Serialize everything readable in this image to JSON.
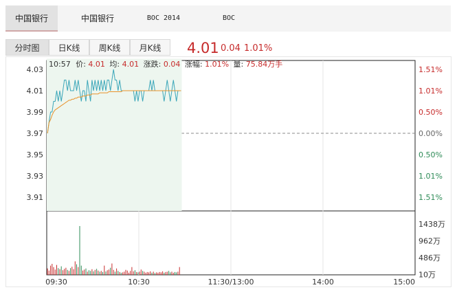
{
  "top_tabs": [
    {
      "label": "中国银行",
      "active": true
    },
    {
      "label": "中国银行",
      "active": false
    },
    {
      "label": "BOC 2014",
      "active": false
    },
    {
      "label": "BOC",
      "active": false
    }
  ],
  "kline_tabs": [
    {
      "label": "分时图",
      "active": true
    },
    {
      "label": "日K线",
      "active": false
    },
    {
      "label": "周K线",
      "active": false
    },
    {
      "label": "月K线",
      "active": false
    }
  ],
  "quote": {
    "price": "4.01",
    "change": "0.04",
    "change_pct": "1.01%"
  },
  "info": {
    "time": "10:57",
    "price_label": "价:",
    "price": "4.01",
    "avg_label": "均:",
    "avg": "4.01",
    "chg_label": "涨跌:",
    "chg": "0.04",
    "pct_label": "涨幅:",
    "pct": "1.01%",
    "vol_label": "量:",
    "vol": "75.84万手"
  },
  "colors": {
    "up": "#c62a2a",
    "down": "#2e8b57",
    "price_line": "#3aa6b9",
    "avg_line": "#e8922a",
    "fill": "#edf6ef",
    "volume": "#2e8b57"
  },
  "chart_data": {
    "type": "line",
    "ylim": [
      3.9,
      4.04
    ],
    "base_price": 3.97,
    "left_ticks": [
      "4.03",
      "4.01",
      "3.99",
      "3.97",
      "3.95",
      "3.93",
      "3.91"
    ],
    "right_ticks": [
      "1.51%",
      "1.01%",
      "0.50%",
      "0.00%",
      "0.50%",
      "1.01%",
      "1.51%"
    ],
    "x_ticks": [
      "09:30",
      "10:30",
      "11:30/13:00",
      "14:00",
      "15:00"
    ],
    "volume_ticks": [
      "1438万",
      "962万",
      "486万",
      "10万"
    ],
    "volume_max": 1438,
    "minutes_elapsed": 87,
    "price": [
      3.97,
      3.98,
      3.99,
      3.99,
      4.0,
      4.0,
      4.01,
      4.0,
      4.01,
      4.0,
      4.01,
      4.02,
      4.02,
      4.01,
      4.02,
      4.01,
      4.01,
      4.01,
      4.02,
      4.01,
      4.02,
      4.01,
      4.0,
      4.01,
      4.01,
      4.0,
      4.02,
      4.01,
      4.0,
      4.02,
      4.01,
      4.02,
      4.01,
      4.02,
      4.01,
      4.02,
      4.01,
      4.02,
      4.01,
      4.02,
      4.02,
      4.01,
      4.02,
      4.03,
      4.02,
      4.02,
      4.01,
      4.02,
      4.01,
      4.01,
      4.01,
      4.01,
      4.01,
      4.01,
      4.01,
      4.01,
      4.01,
      4.0,
      4.01,
      4.0,
      4.01,
      4.01,
      4.0,
      4.01,
      4.01,
      4.01,
      4.01,
      4.02,
      4.01,
      4.02,
      4.01,
      4.01,
      4.01,
      4.01,
      4.01,
      4.01,
      4.0,
      4.01,
      4.02,
      4.01,
      4.0,
      4.01,
      4.02,
      4.01,
      4.0,
      4.01,
      4.01,
      4.01
    ],
    "avg": [
      3.97,
      3.98,
      3.983,
      3.987,
      3.99,
      3.992,
      3.993,
      3.994,
      3.995,
      3.996,
      3.997,
      3.998,
      3.999,
      4.0,
      4.001,
      4.001,
      4.002,
      4.002,
      4.003,
      4.003,
      4.004,
      4.004,
      4.004,
      4.005,
      4.005,
      4.005,
      4.006,
      4.006,
      4.006,
      4.007,
      4.007,
      4.007,
      4.007,
      4.007,
      4.008,
      4.008,
      4.008,
      4.008,
      4.008,
      4.008,
      4.009,
      4.009,
      4.009,
      4.009,
      4.009,
      4.009,
      4.009,
      4.009,
      4.009,
      4.01,
      4.01,
      4.01,
      4.01,
      4.01,
      4.01,
      4.01,
      4.01,
      4.01,
      4.01,
      4.01,
      4.01,
      4.01,
      4.01,
      4.01,
      4.01,
      4.01,
      4.01,
      4.01,
      4.01,
      4.01,
      4.01,
      4.01,
      4.01,
      4.01,
      4.01,
      4.01,
      4.01,
      4.01,
      4.01,
      4.01,
      4.01,
      4.01,
      4.01,
      4.01,
      4.01,
      4.01,
      4.01,
      4.01
    ],
    "volume": [
      180,
      120,
      260,
      310,
      220,
      150,
      280,
      190,
      160,
      240,
      130,
      170,
      200,
      140,
      110,
      190,
      230,
      160,
      380,
      300,
      220,
      1380,
      260,
      120,
      150,
      180,
      90,
      130,
      110,
      160,
      100,
      140,
      170,
      120,
      90,
      110,
      80,
      260,
      95,
      130,
      150,
      200,
      320,
      140,
      90,
      180,
      110,
      80,
      60,
      70,
      90,
      140,
      120,
      60,
      110,
      220,
      100,
      130,
      80,
      70,
      90,
      150,
      110,
      90,
      60,
      80,
      70,
      100,
      60,
      90,
      50,
      70,
      60,
      80,
      70,
      100,
      60,
      80,
      90,
      110,
      70,
      90,
      60,
      80,
      70,
      90,
      220
    ]
  }
}
